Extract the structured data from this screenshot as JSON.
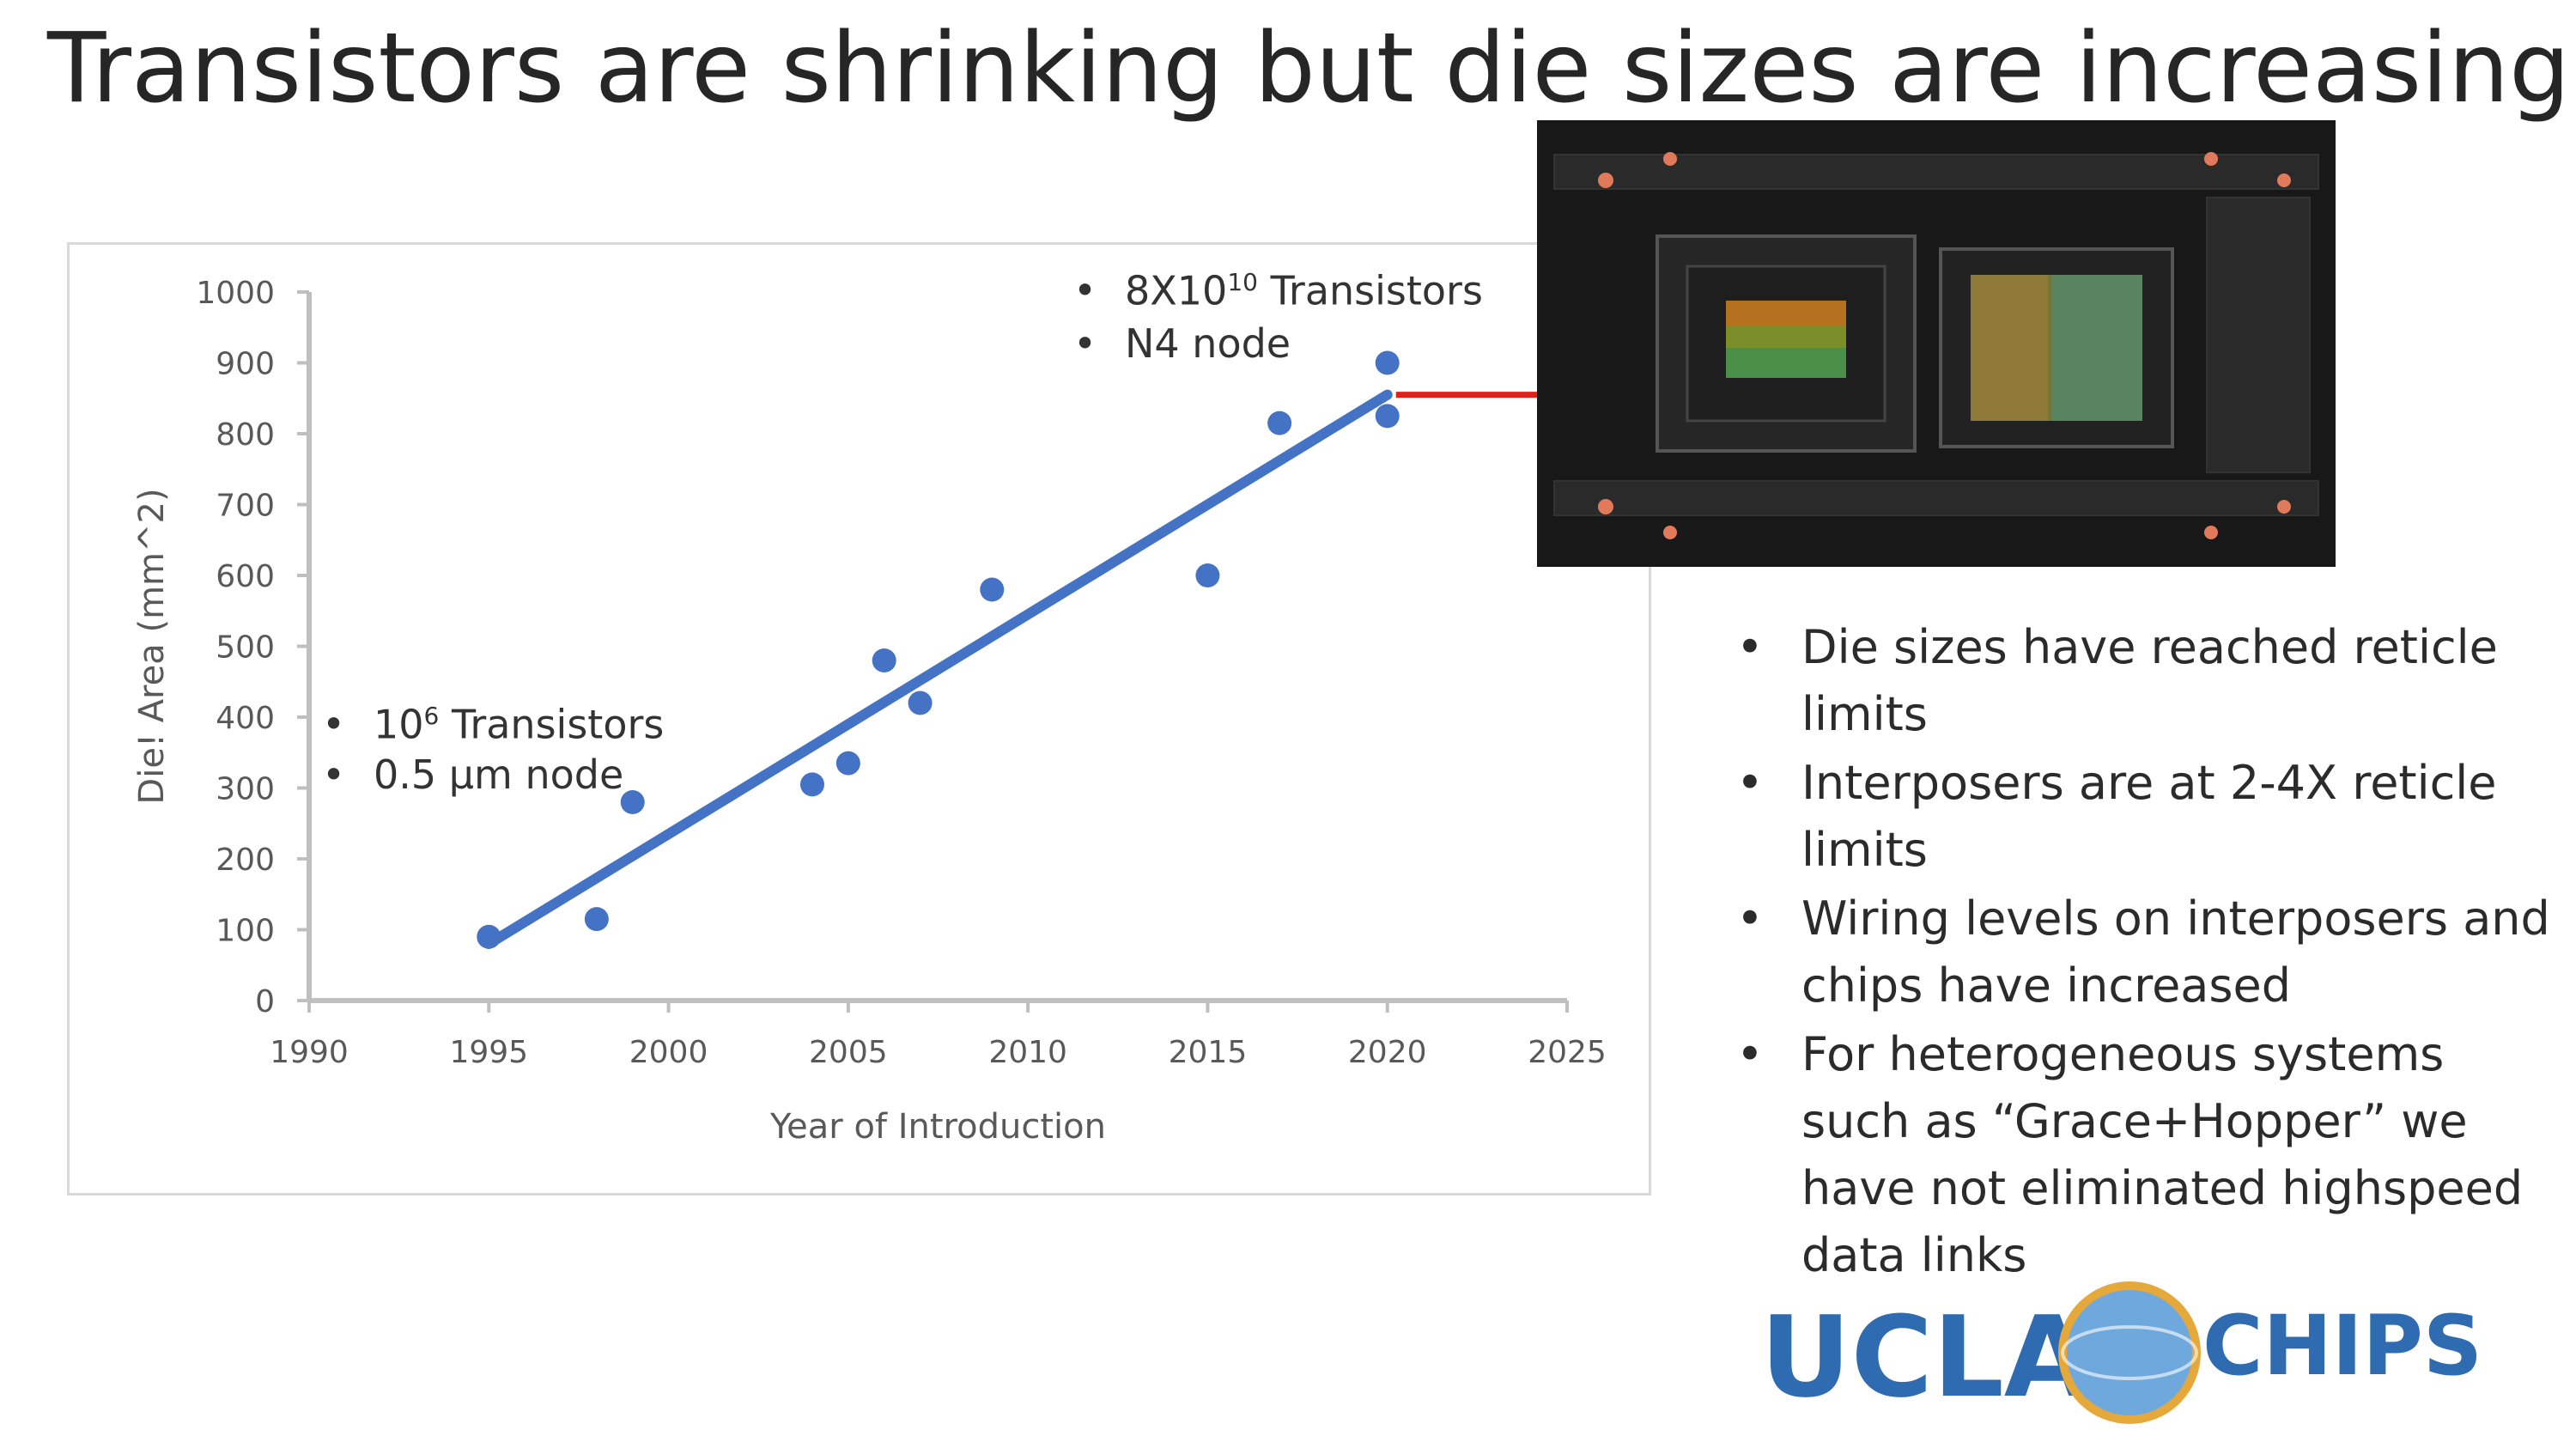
{
  "slide": {
    "title": "Transistors are shrinking but die sizes are increasing !"
  },
  "annotations": {
    "early": {
      "line1_base": "10",
      "line1_sup": "6",
      "line1_rest": " Transistors",
      "line2": "0.5 μm node"
    },
    "recent": {
      "line1_base": "8X10",
      "line1_sup": "10",
      "line1_rest": " Transistors",
      "line2": "N4  node"
    }
  },
  "bullets": [
    "Die sizes have reached reticle limits",
    "Interposers are at 2-4X reticle limits",
    "Wiring levels on interposers and chips have increased",
    "For heterogeneous systems such as “Grace+Hopper” we have not eliminated highspeed data links"
  ],
  "logo": {
    "left_text": "UCLA",
    "right_text": "CHIPS",
    "color": "#2f6bb0",
    "accent": "#e5a93b"
  },
  "colors": {
    "marker": "#4472c4",
    "trendline": "#4472c4",
    "connector": "#e0201b",
    "axis": "#bfbfbf"
  },
  "chart_data": {
    "type": "scatter",
    "xlabel": "Year of Introduction",
    "ylabel": "Die! Area (mm^2)",
    "xlim": [
      1990,
      2025
    ],
    "ylim": [
      0,
      1000
    ],
    "xticks": [
      1990,
      1995,
      2000,
      2005,
      2010,
      2015,
      2020,
      2025
    ],
    "yticks": [
      0,
      100,
      200,
      300,
      400,
      500,
      600,
      700,
      800,
      900,
      1000
    ],
    "grid": false,
    "legend": "none",
    "series": [
      {
        "points": [
          {
            "x": 1995,
            "y": 90
          },
          {
            "x": 1998,
            "y": 115
          },
          {
            "x": 1999,
            "y": 280
          },
          {
            "x": 2004,
            "y": 305
          },
          {
            "x": 2005,
            "y": 335
          },
          {
            "x": 2006,
            "y": 480
          },
          {
            "x": 2007,
            "y": 420
          },
          {
            "x": 2009,
            "y": 580
          },
          {
            "x": 2015,
            "y": 600
          },
          {
            "x": 2017,
            "y": 815
          },
          {
            "x": 2020,
            "y": 900
          },
          {
            "x": 2020,
            "y": 825
          }
        ]
      }
    ],
    "trendline": {
      "x": [
        1995,
        2020
      ],
      "y": [
        80,
        855
      ]
    }
  }
}
